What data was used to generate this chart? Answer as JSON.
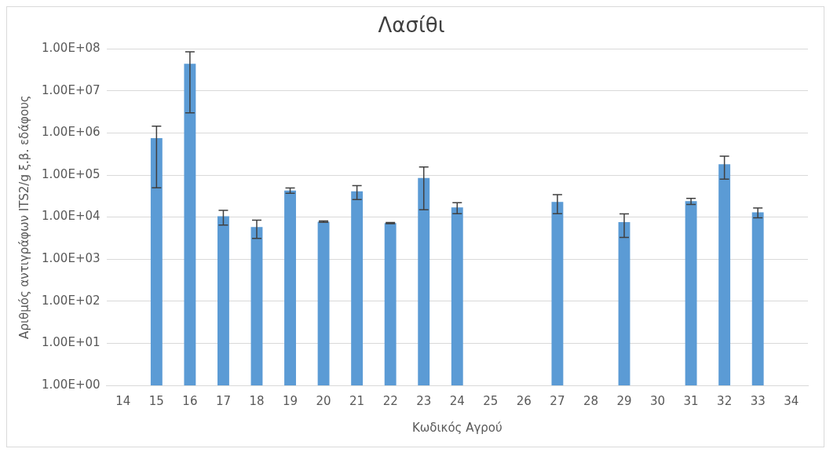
{
  "chart_data": {
    "type": "bar",
    "title": "Λασίθι",
    "xlabel": "Κωδικός Αγρού",
    "ylabel": "Αριθμός αντιγράφων ITS2/g ξ.β. εδάφους",
    "categories": [
      "14",
      "15",
      "16",
      "17",
      "18",
      "19",
      "20",
      "21",
      "22",
      "23",
      "24",
      "25",
      "26",
      "27",
      "28",
      "29",
      "30",
      "31",
      "32",
      "33",
      "34"
    ],
    "values": [
      null,
      750000,
      44000000,
      10500,
      5800,
      43000,
      7800,
      41000,
      7200,
      85000,
      17000,
      null,
      null,
      23000,
      null,
      7600,
      null,
      24000,
      180000,
      13000,
      null
    ],
    "errors": [
      null,
      700000,
      41000000,
      4000,
      2700,
      6000,
      300,
      15000,
      200,
      70000,
      5000,
      null,
      null,
      11000,
      null,
      4300,
      null,
      4000,
      100000,
      3400,
      null
    ],
    "color": "#5b9bd5",
    "log": "y",
    "ylim": [
      1,
      100000000
    ],
    "yticks": [
      {
        "value": 1,
        "label": "1.00E+00"
      },
      {
        "value": 10,
        "label": "1.00E+01"
      },
      {
        "value": 100,
        "label": "1.00E+02"
      },
      {
        "value": 1000,
        "label": "1.00E+03"
      },
      {
        "value": 10000,
        "label": "1.00E+04"
      },
      {
        "value": 100000,
        "label": "1.00E+05"
      },
      {
        "value": 1000000,
        "label": "1.00E+06"
      },
      {
        "value": 10000000,
        "label": "1.00E+07"
      },
      {
        "value": 100000000,
        "label": "1.00E+08"
      }
    ],
    "grid": "y",
    "legend": false
  }
}
